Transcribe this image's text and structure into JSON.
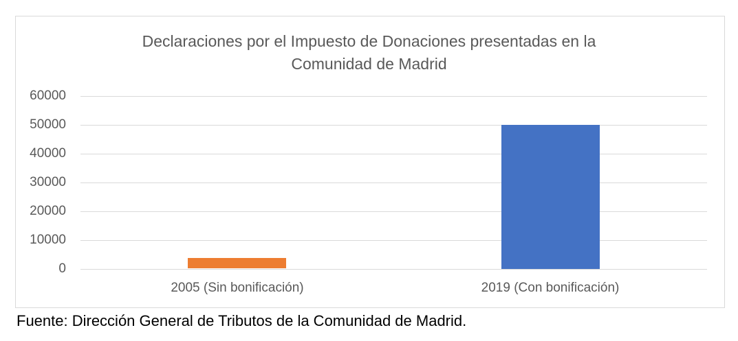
{
  "chart_data": {
    "type": "bar",
    "title": "Declaraciones por el Impuesto de Donaciones presentadas en la Comunidad de Madrid",
    "title_lines": [
      "Declaraciones por el Impuesto de Donaciones presentadas en la",
      "Comunidad de Madrid"
    ],
    "categories": [
      "2005 (Sin bonificación)",
      "2019 (Con bonificación)"
    ],
    "values": [
      3800,
      50000
    ],
    "bar_colors": [
      "#ed7d31",
      "#4472c4"
    ],
    "xlabel": "",
    "ylabel": "",
    "ylim": [
      0,
      60000
    ],
    "yticks": [
      "60000",
      "50000",
      "40000",
      "30000",
      "20000",
      "10000",
      "0"
    ],
    "grid": true,
    "legend": null
  },
  "source": "Fuente: Dirección General de Tributos de la Comunidad de Madrid."
}
